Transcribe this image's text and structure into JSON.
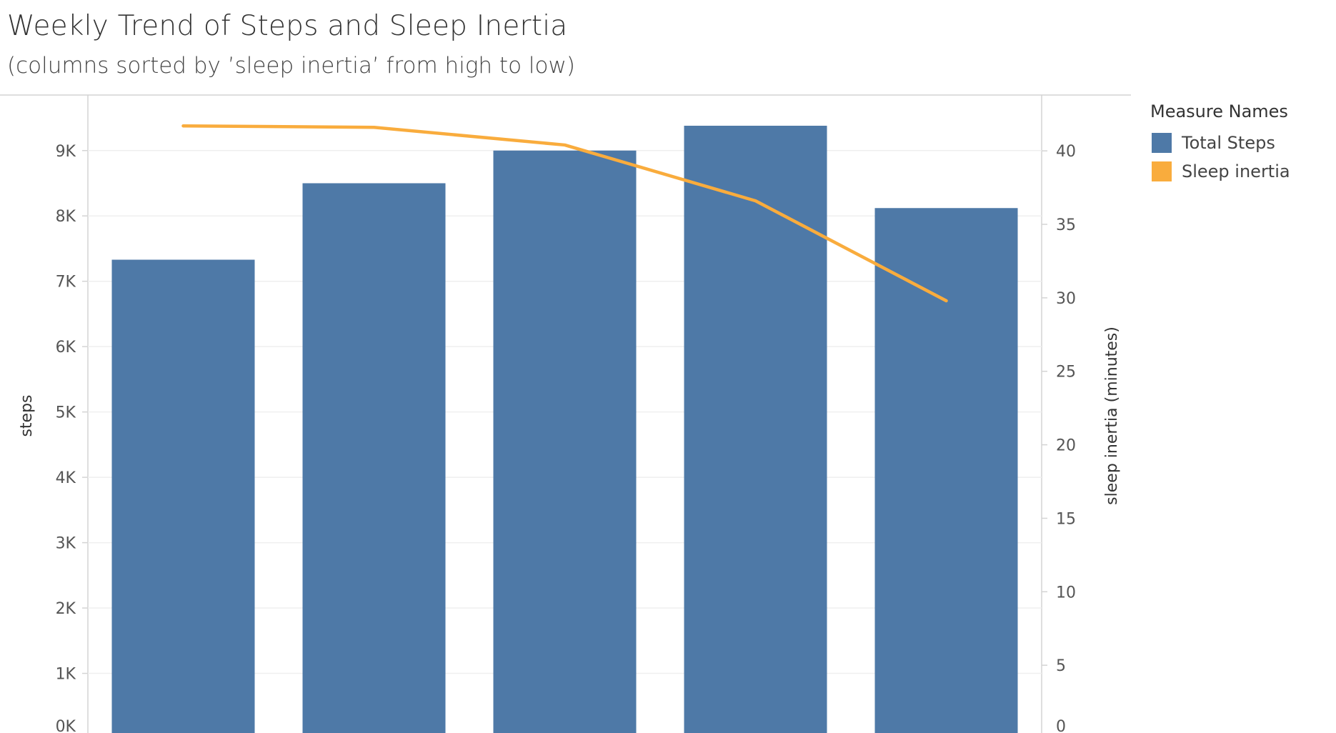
{
  "title": "Weekly Trend of Steps and Sleep Inertia",
  "subtitle": "(columns sorted by ’sleep inertia’ from high to low)",
  "legend": {
    "title": "Measure Names",
    "items": [
      {
        "label": "Total Steps",
        "color": "#4e79a7"
      },
      {
        "label": "Sleep inertia",
        "color": "#f9ac3d"
      }
    ]
  },
  "chart_data": {
    "type": "bar",
    "ylabel": "steps",
    "y2label": "sleep inertia (minutes)",
    "ylim": [
      0,
      9850
    ],
    "y2lim": [
      0,
      43.8
    ],
    "yticks": [
      {
        "value": 0,
        "label": "0K"
      },
      {
        "value": 1000,
        "label": "1K"
      },
      {
        "value": 2000,
        "label": "2K"
      },
      {
        "value": 3000,
        "label": "3K"
      },
      {
        "value": 4000,
        "label": "4K"
      },
      {
        "value": 5000,
        "label": "5K"
      },
      {
        "value": 6000,
        "label": "6K"
      },
      {
        "value": 7000,
        "label": "7K"
      },
      {
        "value": 8000,
        "label": "8K"
      },
      {
        "value": 9000,
        "label": "9K"
      }
    ],
    "y2ticks": [
      0,
      5,
      10,
      15,
      20,
      25,
      30,
      35,
      40
    ],
    "grid": true,
    "legend_position": "right",
    "series": [
      {
        "name": "Total Steps",
        "type": "bar",
        "axis": "left",
        "color": "#4e79a7",
        "values": [
          7330,
          8500,
          9000,
          9380,
          8120
        ]
      },
      {
        "name": "Sleep inertia",
        "type": "line",
        "axis": "right",
        "color": "#f9ac3d",
        "values": [
          41.7,
          41.6,
          40.4,
          36.6,
          29.8
        ]
      }
    ]
  }
}
